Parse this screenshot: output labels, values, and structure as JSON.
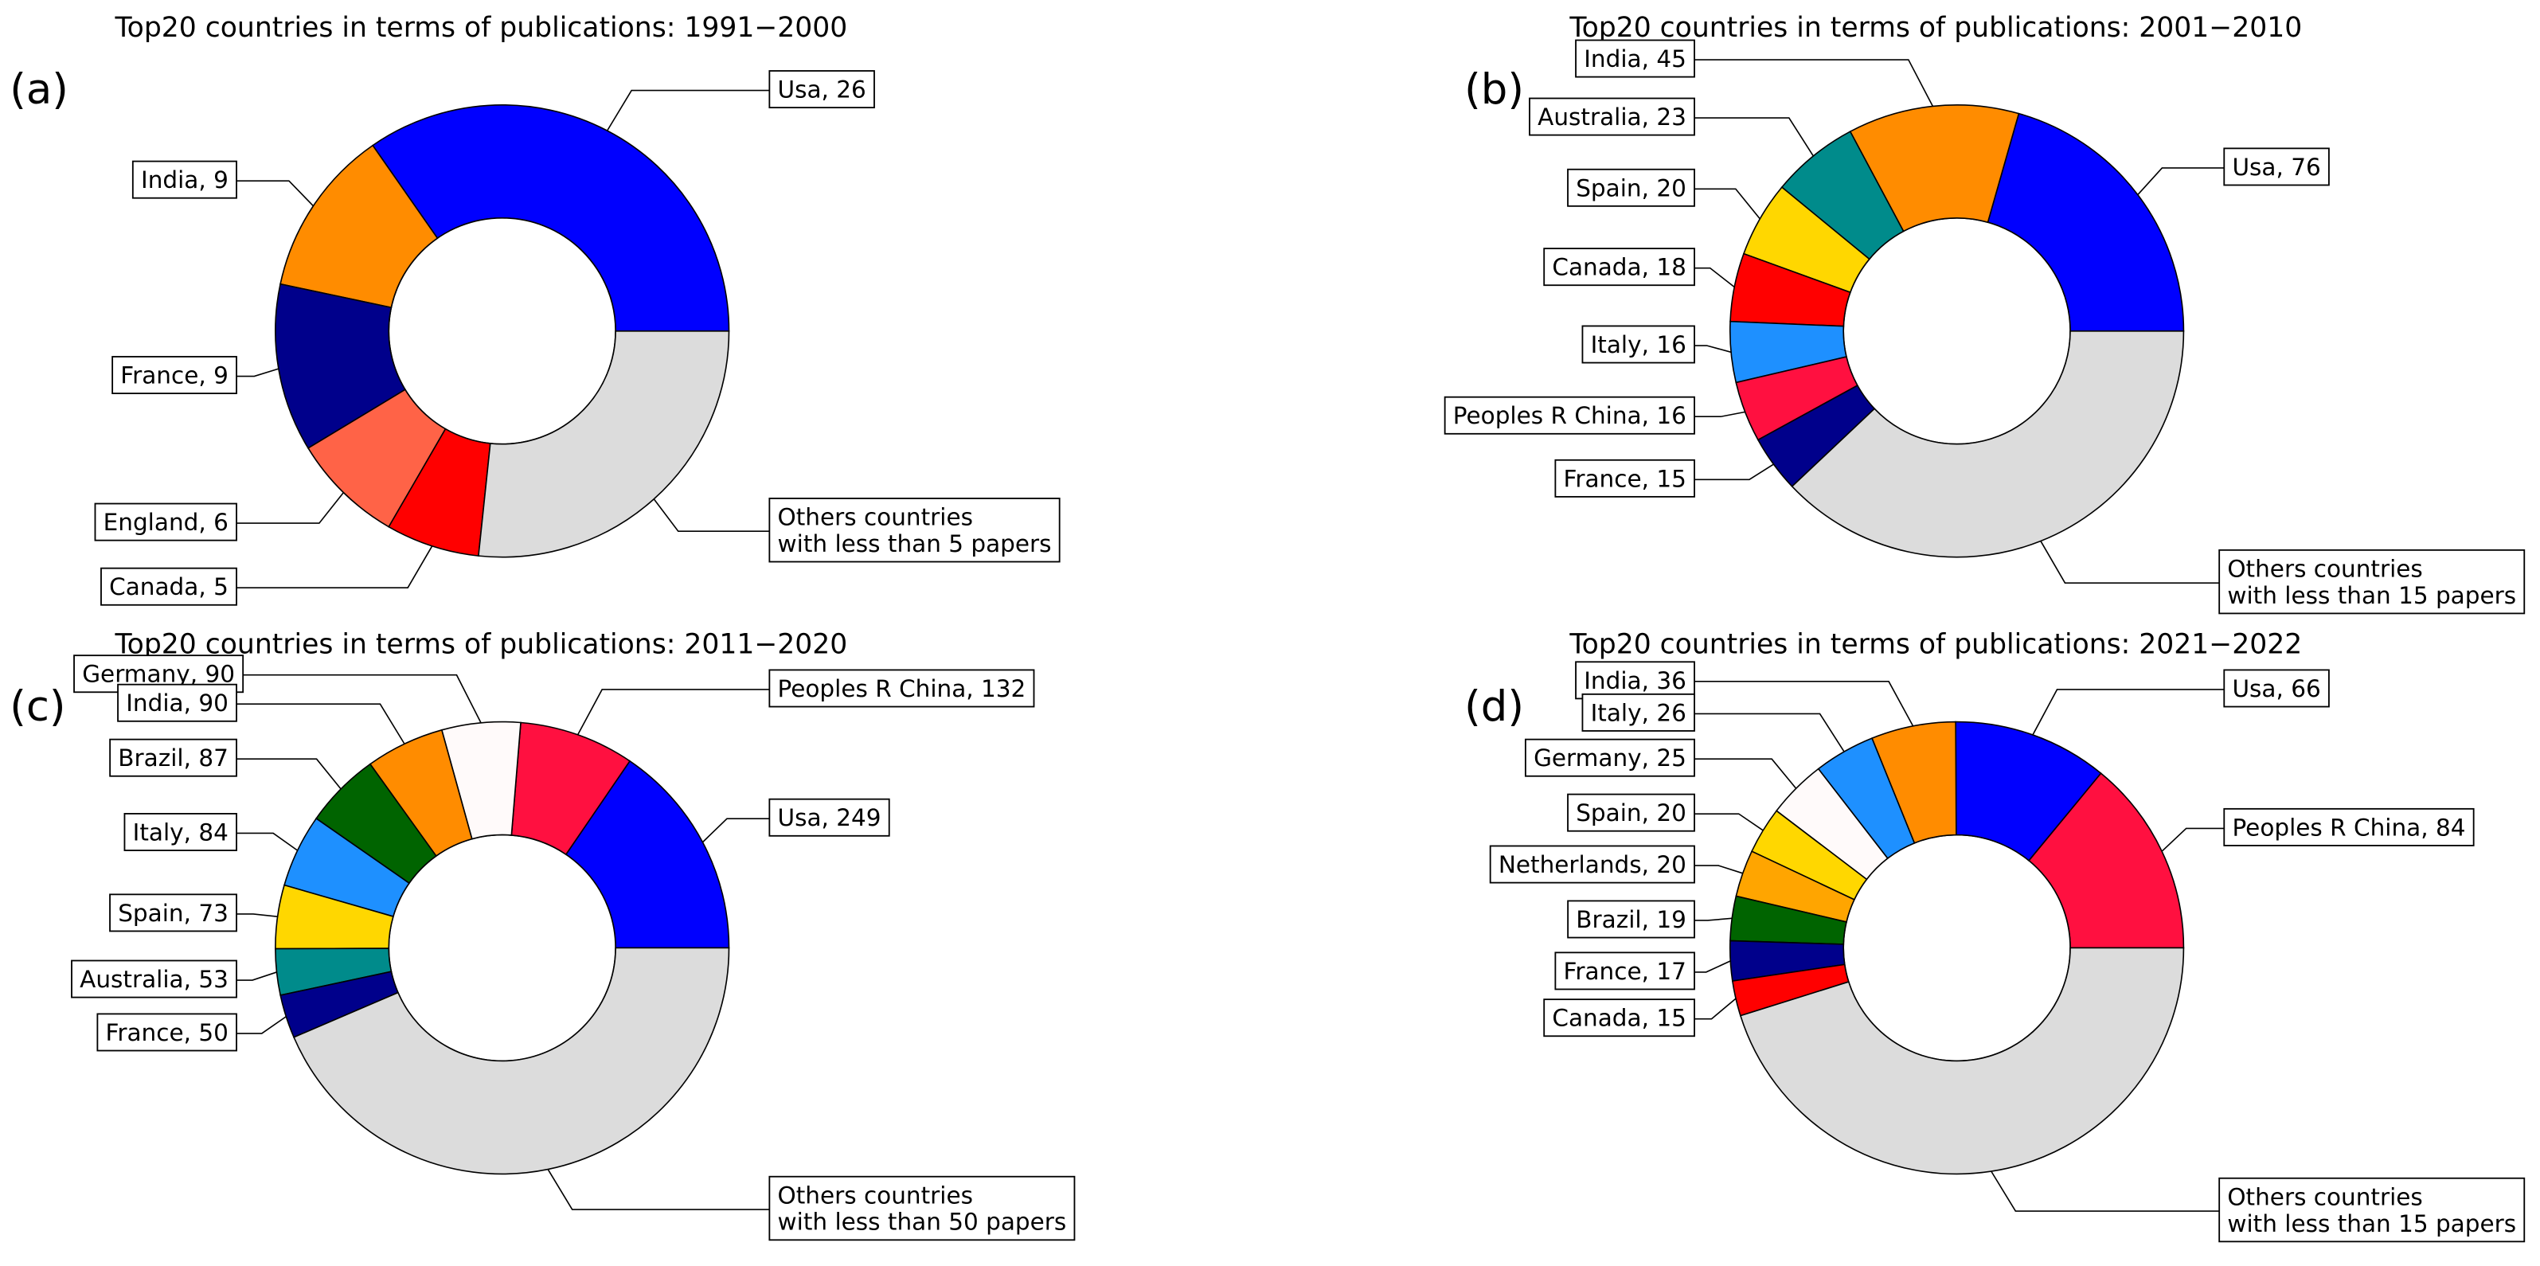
{
  "chart_data": [
    {
      "type": "pie",
      "panel_label": "(a)",
      "title": "Top20 countries in terms of publications: 1991−2000",
      "hole": 0.5,
      "values": [
        26,
        9,
        9,
        6,
        5,
        20
      ],
      "value_labels": [
        "Usa, 26",
        "India, 9",
        "France, 9",
        "England, 6",
        "Canada, 5",
        "Others countries\nwith less than 5 papers"
      ],
      "colors": [
        "#0000ff",
        "#ff8c00",
        "#00008b",
        "#ff6347",
        "#ff0000",
        "#dcdcdc"
      ]
    },
    {
      "type": "pie",
      "panel_label": "(b)",
      "title": "Top20 countries in terms of publications: 2001−2010",
      "hole": 0.5,
      "values": [
        76,
        45,
        23,
        20,
        18,
        16,
        16,
        15,
        140
      ],
      "value_labels": [
        "Usa, 76",
        "India, 45",
        "Australia, 23",
        "Spain, 20",
        "Canada, 18",
        "Italy, 16",
        "Peoples R China, 16",
        "France, 15",
        "Others countries\nwith less than 15 papers"
      ],
      "colors": [
        "#0000ff",
        "#ff8c00",
        "#008b8b",
        "#ffd700",
        "#ff0000",
        "#1e90ff",
        "#ff1040",
        "#00008b",
        "#dcdcdc"
      ]
    },
    {
      "type": "pie",
      "panel_label": "(c)",
      "title": "Top20 countries in terms of publications: 2011−2020",
      "hole": 0.5,
      "values": [
        249,
        132,
        90,
        90,
        87,
        84,
        73,
        53,
        50,
        700
      ],
      "value_labels": [
        "Usa, 249",
        "Peoples R China, 132",
        "Germany, 90",
        "India, 90",
        "Brazil, 87",
        "Italy, 84",
        "Spain, 73",
        "Australia, 53",
        "France, 50",
        "Others countries\nwith less than 50 papers"
      ],
      "colors": [
        "#0000ff",
        "#ff1040",
        "#fffafa",
        "#ff8c00",
        "#006400",
        "#1e90ff",
        "#ffd700",
        "#008b8b",
        "#00008b",
        "#dcdcdc"
      ]
    },
    {
      "type": "pie",
      "panel_label": "(d)",
      "title": "Top20 countries in terms of publications: 2021−2022",
      "hole": 0.5,
      "values": [
        84,
        66,
        36,
        26,
        25,
        20,
        20,
        19,
        17,
        15,
        270
      ],
      "value_labels": [
        "Peoples R China, 84",
        "Usa, 66",
        "India, 36",
        "Italy, 26",
        "Germany, 25",
        "Spain, 20",
        "Netherlands, 20",
        "Brazil, 19",
        "France, 17",
        "Canada, 15",
        "Others countries\nwith less than 15 papers"
      ],
      "colors": [
        "#ff1040",
        "#0000ff",
        "#ff8c00",
        "#1e90ff",
        "#fffafa",
        "#ffd700",
        "#ffa500",
        "#006400",
        "#00008b",
        "#ff0000",
        "#dcdcdc"
      ]
    }
  ]
}
